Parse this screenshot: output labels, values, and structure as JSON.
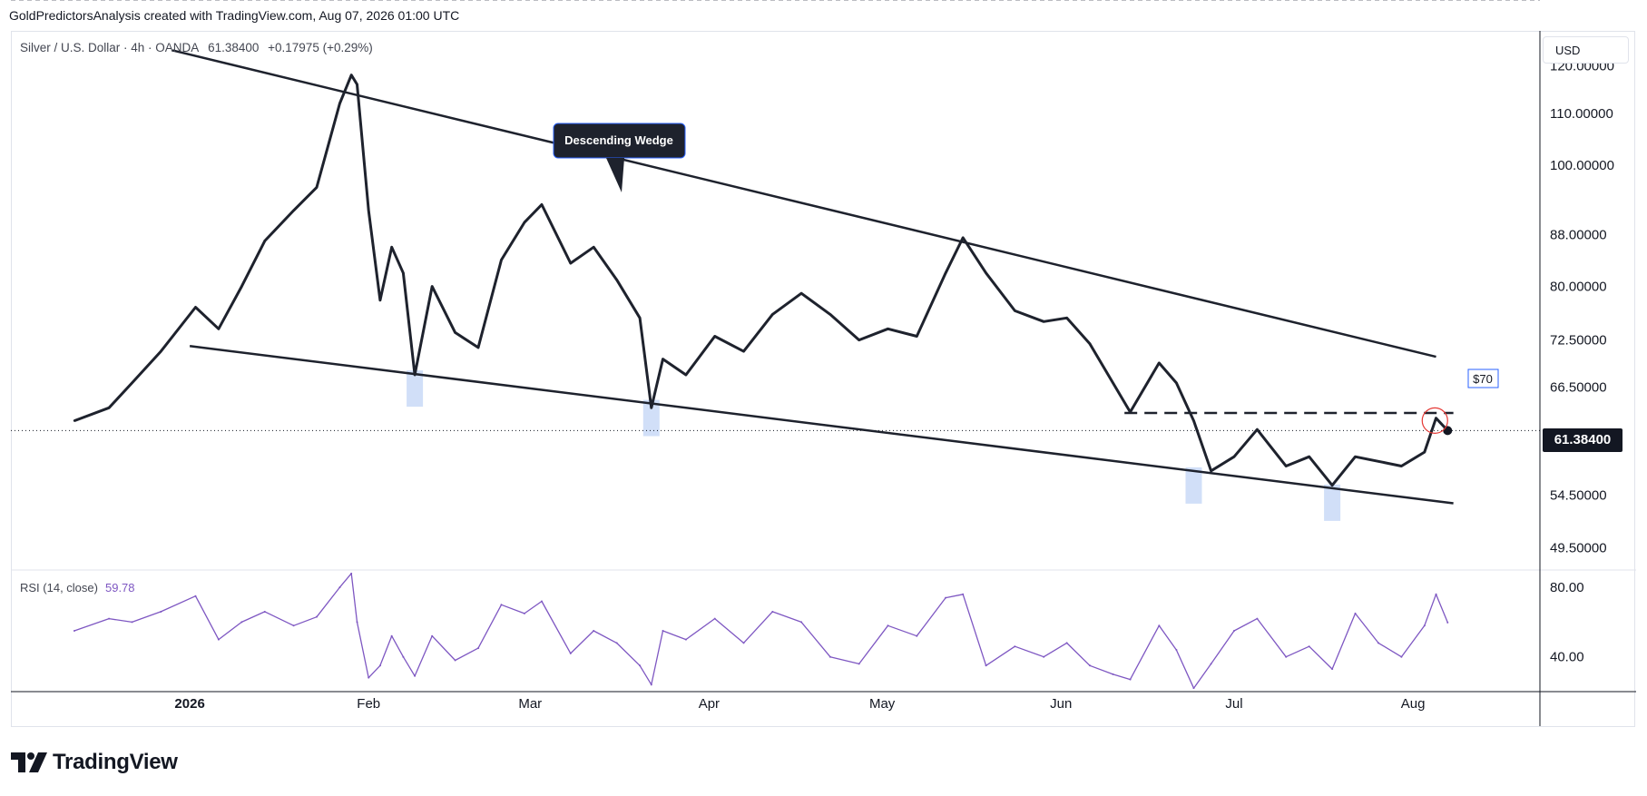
{
  "header": {
    "caption": "GoldPredictorsAnalysis created with TradingView.com, Aug 07, 2026 01:00 UTC"
  },
  "legend": {
    "symbol": "Silver / U.S. Dollar · 4h · OANDA",
    "last": "61.38400",
    "change": "+0.17975 (+0.29%)"
  },
  "currency": "USD",
  "price_tag": "61.38400",
  "rsi": {
    "label": "RSI (14, close)",
    "value": "59.78",
    "upper": 70,
    "lower": 30,
    "mid": 50
  },
  "annotations": {
    "callout": "Descending Wedge",
    "target_label": "$70"
  },
  "footer": {
    "brand": "TradingView"
  },
  "colors": {
    "price_line": "#1e222d",
    "rsi_line": "#7e57c2",
    "rsi_band": "#f1ecfa",
    "highlight": "#c9d9f7",
    "callout_bg": "#1e222d",
    "callout_border": "#2962ff",
    "target_border": "#2962ff",
    "circle": "#e53935"
  },
  "chart_data": [
    {
      "type": "line",
      "title": "Silver / U.S. Dollar · 4h · OANDA",
      "scale": "log",
      "y_ticks": [
        "120.00000",
        "110.00000",
        "100.00000",
        "88.00000",
        "80.00000",
        "72.50000",
        "66.50000",
        "54.50000",
        "49.50000"
      ],
      "x_ticks": [
        "2026",
        "Feb",
        "Mar",
        "Apr",
        "May",
        "Jun",
        "Jul",
        "Aug"
      ],
      "x": [
        "2025-12-12",
        "2025-12-18",
        "2025-12-22",
        "2025-12-27",
        "2026-01-02",
        "2026-01-06",
        "2026-01-10",
        "2026-01-14",
        "2026-01-19",
        "2026-01-23",
        "2026-01-27",
        "2026-01-29",
        "2026-01-30",
        "2026-02-01",
        "2026-02-03",
        "2026-02-05",
        "2026-02-07",
        "2026-02-09",
        "2026-02-12",
        "2026-02-16",
        "2026-02-20",
        "2026-02-24",
        "2026-02-28",
        "2026-03-03",
        "2026-03-08",
        "2026-03-12",
        "2026-03-16",
        "2026-03-20",
        "2026-03-22",
        "2026-03-24",
        "2026-03-28",
        "2026-04-02",
        "2026-04-07",
        "2026-04-12",
        "2026-04-17",
        "2026-04-22",
        "2026-04-27",
        "2026-05-02",
        "2026-05-07",
        "2026-05-12",
        "2026-05-15",
        "2026-05-19",
        "2026-05-24",
        "2026-05-29",
        "2026-06-02",
        "2026-06-06",
        "2026-06-10",
        "2026-06-13",
        "2026-06-18",
        "2026-06-21",
        "2026-06-24",
        "2026-06-27",
        "2026-07-01",
        "2026-07-05",
        "2026-07-10",
        "2026-07-14",
        "2026-07-18",
        "2026-07-22",
        "2026-07-26",
        "2026-07-30",
        "2026-08-03",
        "2026-08-05",
        "2026-08-07"
      ],
      "series": [
        {
          "values": [
            62.5,
            64.0,
            67.0,
            71.0,
            77.0,
            74.0,
            80.0,
            87.0,
            92.0,
            96.0,
            112.0,
            118.0,
            116.0,
            92.0,
            78.0,
            86.0,
            82.0,
            68.0,
            80.0,
            73.5,
            71.5,
            84.0,
            90.0,
            93.0,
            83.5,
            86.0,
            81.0,
            75.5,
            64.0,
            70.0,
            68.0,
            73.0,
            71.0,
            76.0,
            79.0,
            76.0,
            72.5,
            74.0,
            73.0,
            82.0,
            87.5,
            82.0,
            76.5,
            75.0,
            75.5,
            72.0,
            67.0,
            63.5,
            69.5,
            67.0,
            62.5,
            57.0,
            58.5,
            61.5,
            57.5,
            58.5,
            55.5,
            58.5,
            58.0,
            57.5,
            59.0,
            62.8,
            61.384
          ]
        }
      ],
      "ylim": [
        47.5,
        128.0
      ],
      "trendlines": [
        {
          "from": [
            "2025-12-29",
            123.5
          ],
          "to": [
            "2026-08-05",
            70.3
          ]
        },
        {
          "from": [
            "2026-01-01",
            71.7
          ],
          "to": [
            "2026-08-08",
            53.7
          ]
        }
      ],
      "resistance_level": {
        "value": 63.4,
        "from": "2026-06-12",
        "to": "2026-08-08"
      },
      "support_touches": [
        "2026-02-09",
        "2026-03-22",
        "2026-06-24",
        "2026-07-18"
      ]
    },
    {
      "type": "line",
      "title": "RSI (14, close)",
      "ylim": [
        20,
        90
      ],
      "y_ticks": [
        "80.00",
        "40.00"
      ],
      "x": [
        "2025-12-12",
        "2025-12-18",
        "2025-12-22",
        "2025-12-27",
        "2026-01-02",
        "2026-01-06",
        "2026-01-10",
        "2026-01-14",
        "2026-01-19",
        "2026-01-23",
        "2026-01-27",
        "2026-01-29",
        "2026-01-30",
        "2026-02-01",
        "2026-02-03",
        "2026-02-05",
        "2026-02-07",
        "2026-02-09",
        "2026-02-12",
        "2026-02-16",
        "2026-02-20",
        "2026-02-24",
        "2026-02-28",
        "2026-03-03",
        "2026-03-08",
        "2026-03-12",
        "2026-03-16",
        "2026-03-20",
        "2026-03-22",
        "2026-03-24",
        "2026-03-28",
        "2026-04-02",
        "2026-04-07",
        "2026-04-12",
        "2026-04-17",
        "2026-04-22",
        "2026-04-27",
        "2026-05-02",
        "2026-05-07",
        "2026-05-12",
        "2026-05-15",
        "2026-05-19",
        "2026-05-24",
        "2026-05-29",
        "2026-06-02",
        "2026-06-06",
        "2026-06-10",
        "2026-06-13",
        "2026-06-18",
        "2026-06-21",
        "2026-06-24",
        "2026-06-27",
        "2026-07-01",
        "2026-07-05",
        "2026-07-10",
        "2026-07-14",
        "2026-07-18",
        "2026-07-22",
        "2026-07-26",
        "2026-07-30",
        "2026-08-03",
        "2026-08-05",
        "2026-08-07"
      ],
      "series": [
        {
          "values": [
            55,
            62,
            60,
            66,
            75,
            50,
            60,
            66,
            58,
            63,
            80,
            88,
            60,
            28,
            35,
            52,
            40,
            29,
            52,
            38,
            45,
            70,
            65,
            72,
            42,
            55,
            48,
            35,
            24,
            55,
            50,
            62,
            48,
            66,
            60,
            40,
            36,
            58,
            52,
            74,
            76,
            35,
            46,
            40,
            48,
            35,
            30,
            27,
            58,
            44,
            22,
            36,
            55,
            62,
            40,
            46,
            33,
            65,
            48,
            40,
            58,
            76,
            59.78
          ]
        }
      ]
    }
  ]
}
